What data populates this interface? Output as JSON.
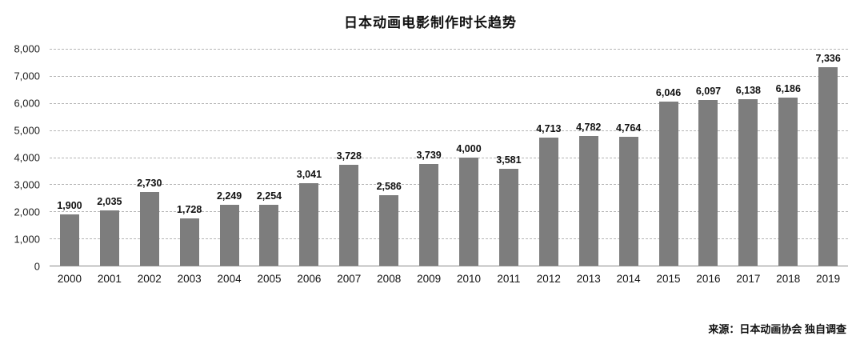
{
  "title": "日本动画电影制作时长趋势",
  "source": "来源：日本动画协会 独自调查",
  "colors": {
    "bar": "#7d7d7d",
    "grid": "#b5b5b5",
    "axis": "#8a8a8a",
    "text": "#111111"
  },
  "chart_data": {
    "type": "bar",
    "title": "日本动画电影制作时长趋势",
    "categories": [
      "2000",
      "2001",
      "2002",
      "2003",
      "2004",
      "2005",
      "2006",
      "2007",
      "2008",
      "2009",
      "2010",
      "2011",
      "2012",
      "2013",
      "2014",
      "2015",
      "2016",
      "2017",
      "2018",
      "2019"
    ],
    "values": [
      1900,
      2035,
      2730,
      1728,
      2249,
      2254,
      3041,
      3728,
      2586,
      3739,
      4000,
      3581,
      4713,
      4782,
      4764,
      6046,
      6097,
      6138,
      6186,
      7336
    ],
    "value_labels": [
      "1,900",
      "2,035",
      "2,730",
      "1,728",
      "2,249",
      "2,254",
      "3,041",
      "3,728",
      "2,586",
      "3,739",
      "4,000",
      "3,581",
      "4,713",
      "4,782",
      "4,764",
      "6,046",
      "6,097",
      "6,138",
      "6,186",
      "7,336"
    ],
    "xlabel": "",
    "ylabel": "",
    "ylim": [
      0,
      8000
    ],
    "y_tick_labels": [
      "8,000",
      "7,000",
      "6,000",
      "5,000",
      "4,000",
      "3,000",
      "2,000",
      "1,000",
      "0"
    ],
    "y_tick_values": [
      8000,
      7000,
      6000,
      5000,
      4000,
      3000,
      2000,
      1000,
      0
    ],
    "grid": true,
    "grid_style": "dashed-horizontal",
    "legend": "none",
    "source_note": "来源：日本动画协会 独自调查"
  }
}
